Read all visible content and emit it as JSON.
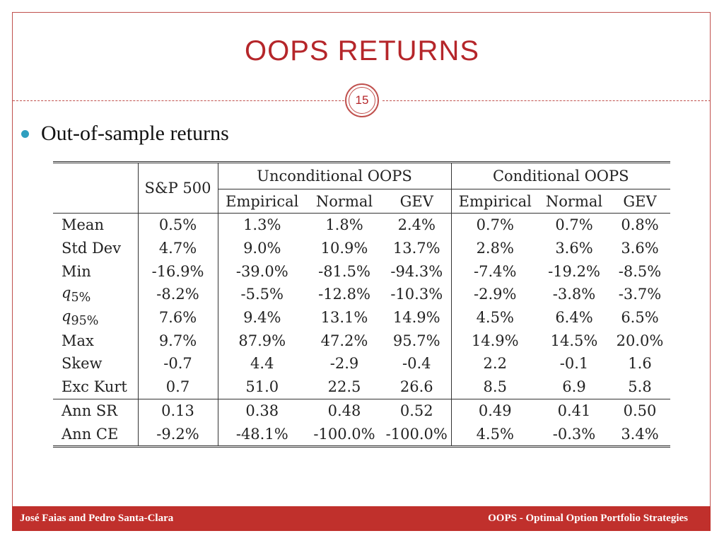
{
  "slide": {
    "title": "OOPS  RETURNS",
    "page_number": "15",
    "bullet": "Out-of-sample returns"
  },
  "table": {
    "sp_header": "S&P 500",
    "group_unconditional": "Unconditional OOPS",
    "group_conditional": "Conditional OOPS",
    "sub_headers": [
      "Empirical",
      "Normal",
      "GEV",
      "Empirical",
      "Normal",
      "GEV"
    ],
    "rows": [
      {
        "label": "Mean",
        "values": [
          "0.5%",
          "1.3%",
          "1.8%",
          "2.4%",
          "0.7%",
          "0.7%",
          "0.8%"
        ]
      },
      {
        "label": "Std Dev",
        "values": [
          "4.7%",
          "9.0%",
          "10.9%",
          "13.7%",
          "2.8%",
          "3.6%",
          "3.6%"
        ]
      },
      {
        "label": "Min",
        "values": [
          "-16.9%",
          "-39.0%",
          "-81.5%",
          "-94.3%",
          "-7.4%",
          "-19.2%",
          "-8.5%"
        ]
      },
      {
        "label": "q",
        "label_sub": "5%",
        "values": [
          "-8.2%",
          "-5.5%",
          "-12.8%",
          "-10.3%",
          "-2.9%",
          "-3.8%",
          "-3.7%"
        ]
      },
      {
        "label": "q",
        "label_sub": "95%",
        "values": [
          "7.6%",
          "9.4%",
          "13.1%",
          "14.9%",
          "4.5%",
          "6.4%",
          "6.5%"
        ]
      },
      {
        "label": "Max",
        "values": [
          "9.7%",
          "87.9%",
          "47.2%",
          "95.7%",
          "14.9%",
          "14.5%",
          "20.0%"
        ]
      },
      {
        "label": "Skew",
        "values": [
          "-0.7",
          "4.4",
          "-2.9",
          "-0.4",
          "2.2",
          "-0.1",
          "1.6"
        ]
      },
      {
        "label": "Exc Kurt",
        "values": [
          "0.7",
          "51.0",
          "22.5",
          "26.6",
          "8.5",
          "6.9",
          "5.8"
        ]
      },
      {
        "label": "Ann SR",
        "values": [
          "0.13",
          "0.38",
          "0.48",
          "0.52",
          "0.49",
          "0.41",
          "0.50"
        ]
      },
      {
        "label": "Ann CE",
        "values": [
          "-9.2%",
          "-48.1%",
          "-100.0%",
          "-100.0%",
          "4.5%",
          "-0.3%",
          "3.4%"
        ]
      }
    ]
  },
  "footer": {
    "left": "José Faias and Pedro Santa-Clara",
    "right": "OOPS - Optimal Option Portfolio Strategies"
  },
  "colors": {
    "accent": "#c0302c",
    "bullet": "#2f9fbf"
  }
}
